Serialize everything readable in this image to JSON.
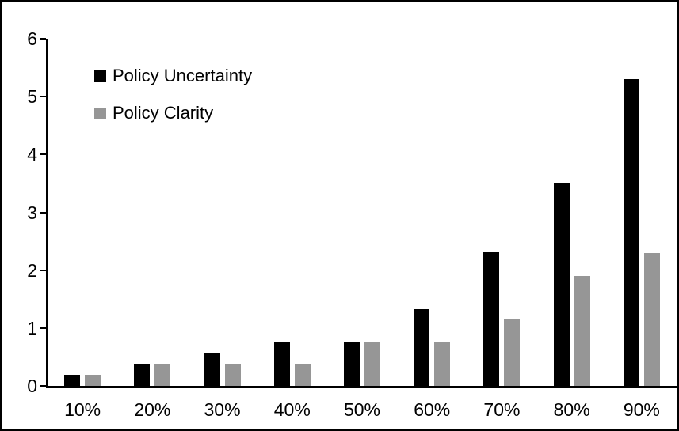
{
  "chart_data": {
    "type": "bar",
    "title": "",
    "xlabel": "",
    "ylabel": "",
    "categories": [
      "10%",
      "20%",
      "30%",
      "40%",
      "50%",
      "60%",
      "70%",
      "80%",
      "90%"
    ],
    "series": [
      {
        "name": "Policy Uncertainty",
        "color": "#000000",
        "values": [
          0.19,
          0.38,
          0.57,
          0.76,
          0.77,
          1.33,
          2.31,
          3.5,
          5.3
        ]
      },
      {
        "name": "Policy Clarity",
        "color": "#969696",
        "values": [
          0.19,
          0.38,
          0.38,
          0.38,
          0.77,
          0.77,
          1.15,
          1.9,
          2.3
        ]
      }
    ],
    "ylim": [
      0,
      6
    ],
    "ytick_step": 1,
    "ytick_labels": [
      "0",
      "1",
      "2",
      "3",
      "4",
      "5",
      "6"
    ],
    "grid": false,
    "legend_position": "top-left-inside",
    "frame_color": "#000000",
    "background_color": "#ffffff"
  }
}
